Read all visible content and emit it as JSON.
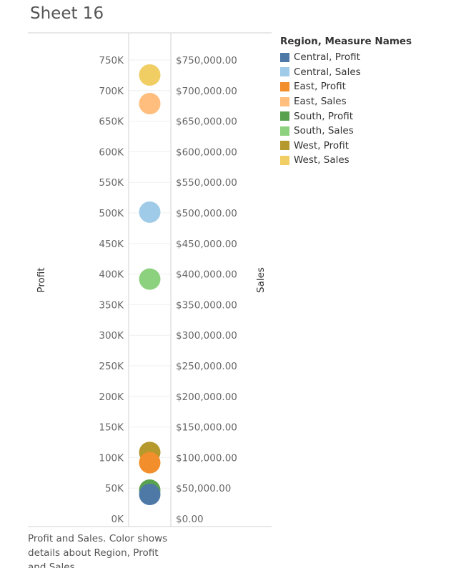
{
  "sheet_title": "Sheet 16",
  "caption": "Profit and Sales.  Color shows details about Region, Profit and Sales.",
  "chart_data": {
    "type": "scatter",
    "title": "Sheet 16",
    "y_left": {
      "label": "Profit",
      "range": [
        0,
        780000
      ],
      "ticks": [
        0,
        50000,
        100000,
        150000,
        200000,
        250000,
        300000,
        350000,
        400000,
        450000,
        500000,
        550000,
        600000,
        650000,
        700000,
        750000
      ],
      "tick_labels": [
        "0K",
        "50K",
        "100K",
        "150K",
        "200K",
        "250K",
        "300K",
        "350K",
        "400K",
        "450K",
        "500K",
        "550K",
        "600K",
        "650K",
        "700K",
        "750K"
      ]
    },
    "y_right": {
      "label": "Sales",
      "tick_labels": [
        "$0.00",
        "$50,000.00",
        "$100,000.00",
        "$150,000.00",
        "$200,000.00",
        "$250,000.00",
        "$300,000.00",
        "$350,000.00",
        "$400,000.00",
        "$450,000.00",
        "$500,000.00",
        "$550,000.00",
        "$600,000.00",
        "$650,000.00",
        "$700,000.00",
        "$750,000.00"
      ]
    },
    "legend": {
      "title": "Region, Measure Names",
      "position": "right"
    },
    "series": [
      {
        "name": "Central, Profit",
        "color": "#4e79a7",
        "value": 39706
      },
      {
        "name": "Central, Sales",
        "color": "#a0cbe8",
        "value": 501240
      },
      {
        "name": "East, Profit",
        "color": "#f28e2b",
        "value": 91523
      },
      {
        "name": "East, Sales",
        "color": "#ffbe7d",
        "value": 678781
      },
      {
        "name": "South, Profit",
        "color": "#59a14f",
        "value": 46749
      },
      {
        "name": "South, Sales",
        "color": "#8cd17d",
        "value": 391722
      },
      {
        "name": "West, Profit",
        "color": "#b6992d",
        "value": 108418
      },
      {
        "name": "West, Sales",
        "color": "#f1ce63",
        "value": 725458
      }
    ]
  }
}
